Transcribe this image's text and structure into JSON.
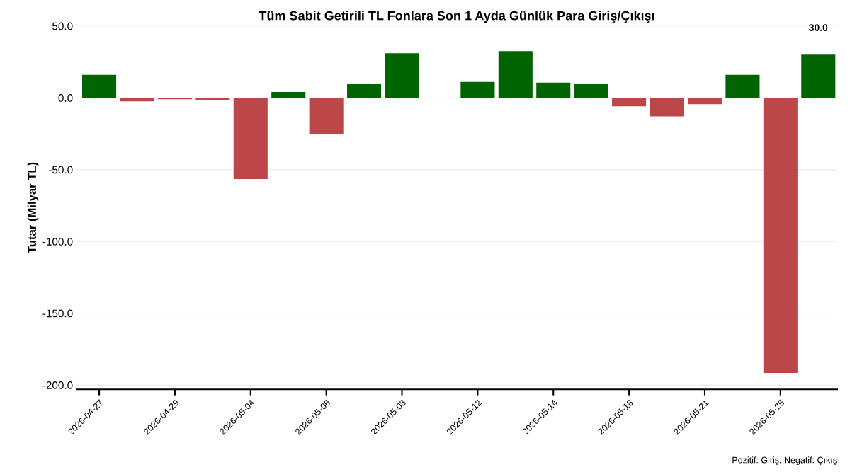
{
  "chart_data": {
    "type": "bar",
    "title": "Tüm Sabit Getirili TL Fonlara Son 1 Ayda Günlük Para Giriş/Çıkışı",
    "ylabel": "Tutar (Milyar TL)",
    "categories": [
      "2026-04-27",
      null,
      "2026-04-29",
      null,
      "2026-05-04",
      null,
      "2026-05-06",
      null,
      "2026-05-08",
      null,
      "2026-05-12",
      null,
      "2026-05-14",
      null,
      "2026-05-18",
      null,
      "2026-05-21",
      null,
      "2026-05-25",
      null
    ],
    "values": [
      16,
      -2.5,
      -1,
      -1.5,
      -56.5,
      4,
      -25,
      10,
      31,
      null,
      11,
      32.5,
      10.5,
      10,
      -6,
      -13,
      -4.5,
      16,
      -191.5,
      30
    ],
    "colors": [
      "#006400",
      "#bc4749",
      "#bc4749",
      "#bc4749",
      "#bc4749",
      "#006400",
      "#bc4749",
      "#006400",
      "#006400",
      "#006400",
      "#006400",
      "#006400",
      "#006400",
      "#006400",
      "#bc4749",
      "#bc4749",
      "#bc4749",
      "#006400",
      "#bc4749",
      "#006400"
    ],
    "value_labels": [
      null,
      null,
      null,
      null,
      null,
      null,
      null,
      null,
      null,
      null,
      null,
      null,
      null,
      null,
      null,
      null,
      null,
      null,
      null,
      "30.0"
    ],
    "ylim": [
      -203,
      50
    ],
    "yticks": [
      {
        "value": -200,
        "label": "-200.0"
      },
      {
        "value": -150,
        "label": "-150.0"
      },
      {
        "value": -100,
        "label": "-100.0"
      },
      {
        "value": -50,
        "label": "-50.0"
      },
      {
        "value": 0,
        "label": "0.0"
      },
      {
        "value": 50,
        "label": "50.0"
      }
    ],
    "grid": "y",
    "legend": false,
    "annotations": [
      "Pozitif: Giriş, Negatif: Çıkış"
    ]
  }
}
